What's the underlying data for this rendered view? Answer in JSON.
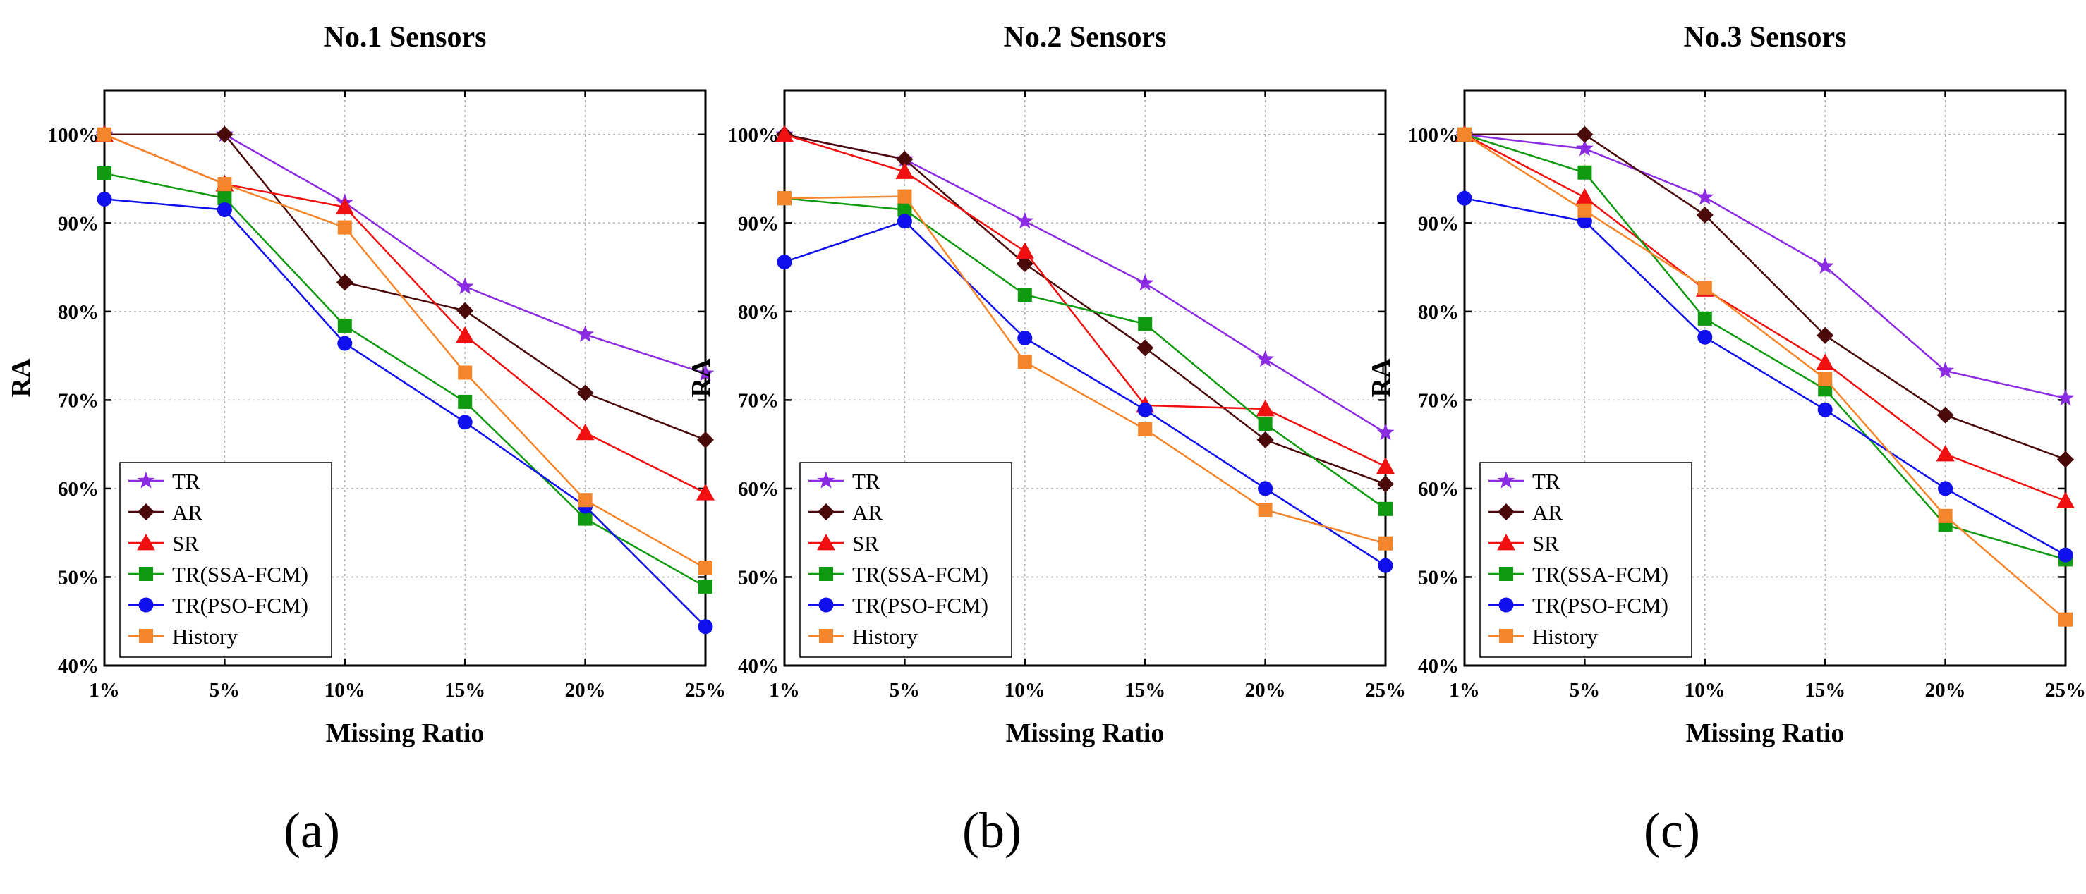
{
  "chart_data": [
    {
      "type": "line",
      "panel_label": "(a)",
      "title": "No.1 Sensors",
      "xlabel": "Missing Ratio",
      "ylabel": "RA",
      "categories": [
        "1%",
        "5%",
        "10%",
        "15%",
        "20%",
        "25%"
      ],
      "ylim": [
        40,
        105
      ],
      "yticks": [
        "40%",
        "50%",
        "60%",
        "70%",
        "80%",
        "90%",
        "100%"
      ],
      "grid": true,
      "legend_position": "bottom-left",
      "series": [
        {
          "name": "TR",
          "color": "#8b2be2",
          "marker": "star",
          "values": [
            100,
            100,
            92.3,
            82.8,
            77.4,
            73.0
          ]
        },
        {
          "name": "AR",
          "color": "#4b0a0a",
          "marker": "diamond",
          "values": [
            100,
            100,
            83.3,
            80.1,
            70.8,
            65.5
          ]
        },
        {
          "name": "SR",
          "color": "#f01010",
          "marker": "triangle",
          "values": [
            100,
            94.4,
            91.8,
            77.3,
            66.3,
            59.5
          ]
        },
        {
          "name": "TR(SSA-FCM)",
          "color": "#0f9a0f",
          "marker": "square",
          "values": [
            95.6,
            92.8,
            78.4,
            69.8,
            56.6,
            48.9
          ]
        },
        {
          "name": "TR(PSO-FCM)",
          "color": "#1010ee",
          "marker": "circle",
          "values": [
            92.7,
            91.5,
            76.4,
            67.5,
            58.0,
            44.4
          ]
        },
        {
          "name": "History",
          "color": "#f5852a",
          "marker": "square",
          "values": [
            100,
            94.4,
            89.5,
            73.1,
            58.7,
            51.0
          ]
        }
      ]
    },
    {
      "type": "line",
      "panel_label": "(b)",
      "title": "No.2 Sensors",
      "xlabel": "Missing Ratio",
      "ylabel": "RA",
      "categories": [
        "1%",
        "5%",
        "10%",
        "15%",
        "20%",
        "25%"
      ],
      "ylim": [
        40,
        105
      ],
      "yticks": [
        "40%",
        "50%",
        "60%",
        "70%",
        "80%",
        "90%",
        "100%"
      ],
      "grid": true,
      "legend_position": "bottom-left",
      "series": [
        {
          "name": "TR",
          "color": "#8b2be2",
          "marker": "star",
          "values": [
            100,
            97.2,
            90.2,
            83.2,
            74.6,
            66.3
          ]
        },
        {
          "name": "AR",
          "color": "#4b0a0a",
          "marker": "diamond",
          "values": [
            100,
            97.2,
            85.4,
            75.9,
            65.5,
            60.5
          ]
        },
        {
          "name": "SR",
          "color": "#f01010",
          "marker": "triangle",
          "values": [
            100,
            95.8,
            86.8,
            69.4,
            69.0,
            62.5
          ]
        },
        {
          "name": "TR(SSA-FCM)",
          "color": "#0f9a0f",
          "marker": "square",
          "values": [
            92.8,
            91.5,
            81.9,
            78.6,
            67.3,
            57.7
          ]
        },
        {
          "name": "TR(PSO-FCM)",
          "color": "#1010ee",
          "marker": "circle",
          "values": [
            85.6,
            90.2,
            77.0,
            68.9,
            60.0,
            51.3
          ]
        },
        {
          "name": "History",
          "color": "#f5852a",
          "marker": "square",
          "values": [
            92.8,
            93.0,
            74.3,
            66.7,
            57.6,
            53.8
          ]
        }
      ]
    },
    {
      "type": "line",
      "panel_label": "(c)",
      "title": "No.3 Sensors",
      "xlabel": "Missing Ratio",
      "ylabel": "RA",
      "categories": [
        "1%",
        "5%",
        "10%",
        "15%",
        "20%",
        "25%"
      ],
      "ylim": [
        40,
        105
      ],
      "yticks": [
        "40%",
        "50%",
        "60%",
        "70%",
        "80%",
        "90%",
        "100%"
      ],
      "grid": true,
      "legend_position": "bottom-left",
      "series": [
        {
          "name": "TR",
          "color": "#8b2be2",
          "marker": "star",
          "values": [
            100,
            98.4,
            92.9,
            85.1,
            73.3,
            70.2
          ]
        },
        {
          "name": "AR",
          "color": "#4b0a0a",
          "marker": "diamond",
          "values": [
            100,
            100,
            90.9,
            77.3,
            68.3,
            63.3
          ]
        },
        {
          "name": "SR",
          "color": "#f01010",
          "marker": "triangle",
          "values": [
            100,
            92.9,
            82.5,
            74.2,
            63.9,
            58.6
          ]
        },
        {
          "name": "TR(SSA-FCM)",
          "color": "#0f9a0f",
          "marker": "square",
          "values": [
            100,
            95.7,
            79.2,
            71.2,
            55.9,
            52.0
          ]
        },
        {
          "name": "TR(PSO-FCM)",
          "color": "#1010ee",
          "marker": "circle",
          "values": [
            92.8,
            90.2,
            77.1,
            68.9,
            60.0,
            52.5
          ]
        },
        {
          "name": "History",
          "color": "#f5852a",
          "marker": "square",
          "values": [
            100,
            91.4,
            82.7,
            72.4,
            56.9,
            45.2
          ]
        }
      ]
    }
  ]
}
